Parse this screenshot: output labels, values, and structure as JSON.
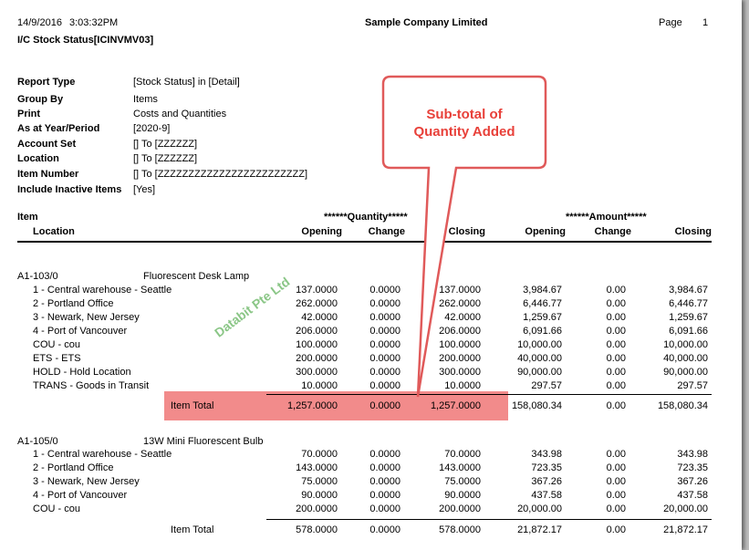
{
  "header": {
    "date": "14/9/2016",
    "time": "3:03:32PM",
    "company": "Sample Company Limited",
    "page_label": "Page",
    "page_number": "1",
    "report_title": "I/C Stock Status[ICINVMV03]"
  },
  "params": [
    {
      "label": "Report Type",
      "value": "[Stock Status] in [Detail]"
    },
    {
      "label": "Group By",
      "value": "Items"
    },
    {
      "label": "Print",
      "value": "Costs and Quantities"
    },
    {
      "label": "As at Year/Period",
      "value": "[2020-9]"
    },
    {
      "label": "Account Set",
      "value": "[] To [ZZZZZZ]"
    },
    {
      "label": "Location",
      "value": "[] To [ZZZZZZ]"
    },
    {
      "label": "Item Number",
      "value": "[] To [ZZZZZZZZZZZZZZZZZZZZZZZZ]"
    },
    {
      "label": "Include Inactive Items",
      "value": "[Yes]"
    }
  ],
  "columns": {
    "item": "Item",
    "location": "Location",
    "quantity_group": "******Quantity*****",
    "amount_group": "******Amount*****",
    "opening": "Opening",
    "change": "Change",
    "closing": "Closing"
  },
  "groups": [
    {
      "code": "A1-103/0",
      "description": "Fluorescent Desk Lamp",
      "rows": [
        {
          "location": "1 - Central warehouse - Seattle",
          "q_open": "137.0000",
          "q_change": "0.0000",
          "q_close": "137.0000",
          "a_open": "3,984.67",
          "a_change": "0.00",
          "a_close": "3,984.67"
        },
        {
          "location": "2 - Portland Office",
          "q_open": "262.0000",
          "q_change": "0.0000",
          "q_close": "262.0000",
          "a_open": "6,446.77",
          "a_change": "0.00",
          "a_close": "6,446.77"
        },
        {
          "location": "3 - Newark, New Jersey",
          "q_open": "42.0000",
          "q_change": "0.0000",
          "q_close": "42.0000",
          "a_open": "1,259.67",
          "a_change": "0.00",
          "a_close": "1,259.67"
        },
        {
          "location": "4 - Port of Vancouver",
          "q_open": "206.0000",
          "q_change": "0.0000",
          "q_close": "206.0000",
          "a_open": "6,091.66",
          "a_change": "0.00",
          "a_close": "6,091.66"
        },
        {
          "location": "COU - cou",
          "q_open": "100.0000",
          "q_change": "0.0000",
          "q_close": "100.0000",
          "a_open": "10,000.00",
          "a_change": "0.00",
          "a_close": "10,000.00"
        },
        {
          "location": "ETS - ETS",
          "q_open": "200.0000",
          "q_change": "0.0000",
          "q_close": "200.0000",
          "a_open": "40,000.00",
          "a_change": "0.00",
          "a_close": "40,000.00"
        },
        {
          "location": "HOLD - Hold Location",
          "q_open": "300.0000",
          "q_change": "0.0000",
          "q_close": "300.0000",
          "a_open": "90,000.00",
          "a_change": "0.00",
          "a_close": "90,000.00"
        },
        {
          "location": "TRANS - Goods in Transit",
          "q_open": "10.0000",
          "q_change": "0.0000",
          "q_close": "10.0000",
          "a_open": "297.57",
          "a_change": "0.00",
          "a_close": "297.57"
        }
      ],
      "total": {
        "label": "Item Total",
        "q_open": "1,257.0000",
        "q_change": "0.0000",
        "q_close": "1,257.0000",
        "a_open": "158,080.34",
        "a_change": "0.00",
        "a_close": "158,080.34"
      }
    },
    {
      "code": "A1-105/0",
      "description": "13W Mini Fluorescent Bulb",
      "rows": [
        {
          "location": "1 - Central warehouse - Seattle",
          "q_open": "70.0000",
          "q_change": "0.0000",
          "q_close": "70.0000",
          "a_open": "343.98",
          "a_change": "0.00",
          "a_close": "343.98"
        },
        {
          "location": "2 - Portland Office",
          "q_open": "143.0000",
          "q_change": "0.0000",
          "q_close": "143.0000",
          "a_open": "723.35",
          "a_change": "0.00",
          "a_close": "723.35"
        },
        {
          "location": "3 - Newark, New Jersey",
          "q_open": "75.0000",
          "q_change": "0.0000",
          "q_close": "75.0000",
          "a_open": "367.26",
          "a_change": "0.00",
          "a_close": "367.26"
        },
        {
          "location": "4 - Port of Vancouver",
          "q_open": "90.0000",
          "q_change": "0.0000",
          "q_close": "90.0000",
          "a_open": "437.58",
          "a_change": "0.00",
          "a_close": "437.58"
        },
        {
          "location": "COU - cou",
          "q_open": "200.0000",
          "q_change": "0.0000",
          "q_close": "200.0000",
          "a_open": "20,000.00",
          "a_change": "0.00",
          "a_close": "20,000.00"
        }
      ],
      "total": {
        "label": "Item Total",
        "q_open": "578.0000",
        "q_change": "0.0000",
        "q_close": "578.0000",
        "a_open": "21,872.17",
        "a_change": "0.00",
        "a_close": "21,872.17"
      }
    }
  ],
  "callout": {
    "line1": "Sub-total of",
    "line2": "Quantity Added",
    "fill": "#ffffff",
    "stroke": "#e05a5a",
    "text_color": "#e8413a"
  },
  "highlight_color": "#f28b8b",
  "watermark": "Databit Pte Ltd"
}
